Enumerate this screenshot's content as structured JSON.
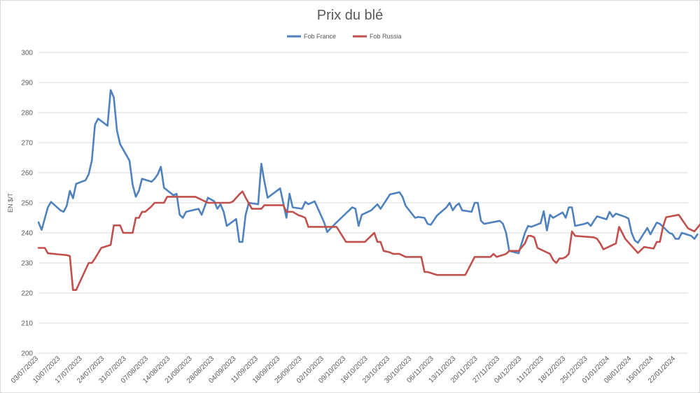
{
  "chart_data": {
    "type": "line",
    "title": "Prix du blé",
    "ylabel": "EN $/T",
    "xlabel": "",
    "ylim": [
      200,
      300
    ],
    "yticks": [
      200,
      210,
      220,
      230,
      240,
      250,
      260,
      270,
      280,
      290,
      300
    ],
    "y_gridlines": true,
    "legend_position": "top-center",
    "x_start": "2023-07-03",
    "x_end": "2024-01-26",
    "x_ticks": [
      "03/07/2023",
      "10/07/2023",
      "17/07/2023",
      "24/07/2023",
      "31/07/2023",
      "07/08/2023",
      "14/08/2023",
      "21/08/2023",
      "28/08/2023",
      "04/09/2023",
      "11/09/2023",
      "18/09/2023",
      "25/09/2023",
      "02/10/2023",
      "09/10/2023",
      "16/10/2023",
      "23/10/2023",
      "30/10/2023",
      "06/11/2023",
      "13/11/2023",
      "20/11/2023",
      "27/11/2023",
      "04/12/2023",
      "11/12/2023",
      "18/12/2023",
      "25/12/2023",
      "01/01/2024",
      "08/01/2024",
      "15/01/2024",
      "22/01/2024"
    ],
    "series": [
      {
        "name": "Fob France",
        "color": "#4f81bd",
        "points": [
          [
            "2023-07-03",
            243.5
          ],
          [
            "2023-07-04",
            241
          ],
          [
            "2023-07-06",
            248.5
          ],
          [
            "2023-07-07",
            250.3
          ],
          [
            "2023-07-10",
            247.5
          ],
          [
            "2023-07-11",
            247
          ],
          [
            "2023-07-12",
            249
          ],
          [
            "2023-07-13",
            254
          ],
          [
            "2023-07-14",
            251.5
          ],
          [
            "2023-07-15",
            256.3
          ],
          [
            "2023-07-18",
            257.5
          ],
          [
            "2023-07-19",
            259.5
          ],
          [
            "2023-07-20",
            264
          ],
          [
            "2023-07-21",
            276
          ],
          [
            "2023-07-22",
            278
          ],
          [
            "2023-07-25",
            275.6
          ],
          [
            "2023-07-26",
            287.5
          ],
          [
            "2023-07-27",
            285
          ],
          [
            "2023-07-28",
            274
          ],
          [
            "2023-07-29",
            269.5
          ],
          [
            "2023-08-01",
            264
          ],
          [
            "2023-08-02",
            256
          ],
          [
            "2023-08-03",
            252
          ],
          [
            "2023-08-04",
            254
          ],
          [
            "2023-08-05",
            258
          ],
          [
            "2023-08-08",
            257
          ],
          [
            "2023-08-09",
            258
          ],
          [
            "2023-08-10",
            259.5
          ],
          [
            "2023-08-11",
            262
          ],
          [
            "2023-08-12",
            255
          ],
          [
            "2023-08-15",
            252.5
          ],
          [
            "2023-08-16",
            253
          ],
          [
            "2023-08-17",
            246
          ],
          [
            "2023-08-18",
            245
          ],
          [
            "2023-08-19",
            247
          ],
          [
            "2023-08-23",
            248
          ],
          [
            "2023-08-24",
            246
          ],
          [
            "2023-08-26",
            251.7
          ],
          [
            "2023-08-28",
            250.5
          ],
          [
            "2023-08-29",
            248
          ],
          [
            "2023-08-30",
            249.5
          ],
          [
            "2023-08-31",
            247
          ],
          [
            "2023-09-01",
            242.3
          ],
          [
            "2023-09-04",
            244.6
          ],
          [
            "2023-09-05",
            237
          ],
          [
            "2023-09-06",
            237
          ],
          [
            "2023-09-07",
            246
          ],
          [
            "2023-09-08",
            250
          ],
          [
            "2023-09-11",
            249.5
          ],
          [
            "2023-09-12",
            263
          ],
          [
            "2023-09-13",
            257
          ],
          [
            "2023-09-14",
            251.7
          ],
          [
            "2023-09-18",
            254.8
          ],
          [
            "2023-09-20",
            245
          ],
          [
            "2023-09-21",
            253
          ],
          [
            "2023-09-22",
            248.5
          ],
          [
            "2023-09-25",
            248
          ],
          [
            "2023-09-26",
            250.3
          ],
          [
            "2023-09-27",
            249.5
          ],
          [
            "2023-09-29",
            250.5
          ],
          [
            "2023-10-02",
            243.5
          ],
          [
            "2023-10-03",
            240.3
          ],
          [
            "2023-10-06",
            243.5
          ],
          [
            "2023-10-09",
            246.5
          ],
          [
            "2023-10-11",
            248.5
          ],
          [
            "2023-10-12",
            248
          ],
          [
            "2023-10-13",
            242.3
          ],
          [
            "2023-10-14",
            246
          ],
          [
            "2023-10-17",
            247.5
          ],
          [
            "2023-10-19",
            249.5
          ],
          [
            "2023-10-20",
            248
          ],
          [
            "2023-10-23",
            252.8
          ],
          [
            "2023-10-26",
            253.5
          ],
          [
            "2023-10-27",
            252
          ],
          [
            "2023-10-28",
            249
          ],
          [
            "2023-10-31",
            245
          ],
          [
            "2023-11-01",
            245.3
          ],
          [
            "2023-11-03",
            245
          ],
          [
            "2023-11-04",
            243
          ],
          [
            "2023-11-05",
            242.7
          ],
          [
            "2023-11-07",
            245.8
          ],
          [
            "2023-11-10",
            248.5
          ],
          [
            "2023-11-11",
            250
          ],
          [
            "2023-11-12",
            247.5
          ],
          [
            "2023-11-13",
            249
          ],
          [
            "2023-11-14",
            249.8
          ],
          [
            "2023-11-15",
            247.5
          ],
          [
            "2023-11-18",
            247
          ],
          [
            "2023-11-19",
            250
          ],
          [
            "2023-11-20",
            250
          ],
          [
            "2023-11-21",
            244
          ],
          [
            "2023-11-22",
            243
          ],
          [
            "2023-11-27",
            244
          ],
          [
            "2023-11-28",
            243
          ],
          [
            "2023-11-29",
            240
          ],
          [
            "2023-11-30",
            234
          ],
          [
            "2023-12-03",
            233.2
          ],
          [
            "2023-12-05",
            240
          ],
          [
            "2023-12-06",
            242.3
          ],
          [
            "2023-12-07",
            242
          ],
          [
            "2023-12-10",
            243.2
          ],
          [
            "2023-12-11",
            247.2
          ],
          [
            "2023-12-12",
            240.8
          ],
          [
            "2023-12-13",
            246
          ],
          [
            "2023-12-14",
            245
          ],
          [
            "2023-12-17",
            246.8
          ],
          [
            "2023-12-18",
            245
          ],
          [
            "2023-12-19",
            248.5
          ],
          [
            "2023-12-20",
            248.5
          ],
          [
            "2023-12-21",
            242.3
          ],
          [
            "2023-12-24",
            243
          ],
          [
            "2023-12-25",
            243.4
          ],
          [
            "2023-12-26",
            242.3
          ],
          [
            "2023-12-27",
            244
          ],
          [
            "2023-12-28",
            245.5
          ],
          [
            "2023-12-31",
            244.5
          ],
          [
            "2024-01-01",
            247
          ],
          [
            "2024-01-02",
            245.3
          ],
          [
            "2024-01-03",
            246.4
          ],
          [
            "2024-01-06",
            245.3
          ],
          [
            "2024-01-07",
            244.8
          ],
          [
            "2024-01-08",
            240
          ],
          [
            "2024-01-09",
            237.5
          ],
          [
            "2024-01-10",
            236.7
          ],
          [
            "2024-01-13",
            241.6
          ],
          [
            "2024-01-14",
            239.5
          ],
          [
            "2024-01-15",
            241.5
          ],
          [
            "2024-01-16",
            243.4
          ],
          [
            "2024-01-17",
            243
          ],
          [
            "2024-01-20",
            240
          ],
          [
            "2024-01-21",
            239.6
          ],
          [
            "2024-01-22",
            238
          ],
          [
            "2024-01-23",
            238
          ],
          [
            "2024-01-24",
            240
          ],
          [
            "2024-01-27",
            239
          ],
          [
            "2024-01-28",
            238
          ],
          [
            "2024-01-29",
            239.5
          ]
        ]
      },
      {
        "name": "Fob Russia",
        "color": "#c0504d",
        "points": [
          [
            "2023-07-03",
            235
          ],
          [
            "2023-07-05",
            235
          ],
          [
            "2023-07-06",
            233.2
          ],
          [
            "2023-07-10",
            232.8
          ],
          [
            "2023-07-12",
            232.6
          ],
          [
            "2023-07-13",
            232.3
          ],
          [
            "2023-07-14",
            221
          ],
          [
            "2023-07-15",
            221
          ],
          [
            "2023-07-19",
            230
          ],
          [
            "2023-07-20",
            230
          ],
          [
            "2023-07-21",
            231.5
          ],
          [
            "2023-07-23",
            235
          ],
          [
            "2023-07-26",
            236
          ],
          [
            "2023-07-27",
            242.5
          ],
          [
            "2023-07-29",
            242.5
          ],
          [
            "2023-07-30",
            240
          ],
          [
            "2023-08-02",
            240
          ],
          [
            "2023-08-03",
            245
          ],
          [
            "2023-08-04",
            245
          ],
          [
            "2023-08-05",
            247
          ],
          [
            "2023-08-06",
            247
          ],
          [
            "2023-08-08",
            248.8
          ],
          [
            "2023-08-09",
            250
          ],
          [
            "2023-08-12",
            250
          ],
          [
            "2023-08-13",
            252
          ],
          [
            "2023-08-22",
            252
          ],
          [
            "2023-08-24",
            251
          ],
          [
            "2023-08-26",
            250
          ],
          [
            "2023-09-02",
            250
          ],
          [
            "2023-09-03",
            250.5
          ],
          [
            "2023-09-05",
            252.8
          ],
          [
            "2023-09-06",
            253.8
          ],
          [
            "2023-09-07",
            251.7
          ],
          [
            "2023-09-09",
            248
          ],
          [
            "2023-09-12",
            248
          ],
          [
            "2023-09-13",
            249.2
          ],
          [
            "2023-09-19",
            249.2
          ],
          [
            "2023-09-20",
            247
          ],
          [
            "2023-09-22",
            247
          ],
          [
            "2023-09-24",
            245.8
          ],
          [
            "2023-09-25",
            245.5
          ],
          [
            "2023-09-26",
            245
          ],
          [
            "2023-09-27",
            242
          ],
          [
            "2023-10-06",
            242
          ],
          [
            "2023-10-09",
            237
          ],
          [
            "2023-10-15",
            237
          ],
          [
            "2023-10-18",
            240
          ],
          [
            "2023-10-19",
            237
          ],
          [
            "2023-10-20",
            237
          ],
          [
            "2023-10-21",
            234
          ],
          [
            "2023-10-23",
            233.5
          ],
          [
            "2023-10-24",
            233
          ],
          [
            "2023-10-26",
            233
          ],
          [
            "2023-10-28",
            232
          ],
          [
            "2023-11-02",
            232
          ],
          [
            "2023-11-03",
            227
          ],
          [
            "2023-11-04",
            227
          ],
          [
            "2023-11-07",
            226
          ],
          [
            "2023-11-13",
            226
          ],
          [
            "2023-11-16",
            226
          ],
          [
            "2023-11-19",
            232
          ],
          [
            "2023-11-23",
            232
          ],
          [
            "2023-11-24",
            232
          ],
          [
            "2023-11-25",
            233
          ],
          [
            "2023-11-26",
            232
          ],
          [
            "2023-11-29",
            233
          ],
          [
            "2023-11-30",
            234
          ],
          [
            "2023-12-02",
            234
          ],
          [
            "2023-12-03",
            234
          ],
          [
            "2023-12-05",
            236.5
          ],
          [
            "2023-12-06",
            239
          ],
          [
            "2023-12-07",
            239
          ],
          [
            "2023-12-08",
            238.5
          ],
          [
            "2023-12-09",
            235
          ],
          [
            "2023-12-13",
            233
          ],
          [
            "2023-12-14",
            231
          ],
          [
            "2023-12-15",
            230
          ],
          [
            "2023-12-16",
            231.5
          ],
          [
            "2023-12-17",
            231.5
          ],
          [
            "2023-12-18",
            232
          ],
          [
            "2023-12-19",
            233
          ],
          [
            "2023-12-20",
            240.5
          ],
          [
            "2023-12-21",
            239
          ],
          [
            "2023-12-27",
            238.5
          ],
          [
            "2023-12-28",
            238
          ],
          [
            "2023-12-29",
            236.5
          ],
          [
            "2023-12-30",
            234.5
          ],
          [
            "2024-01-02",
            236
          ],
          [
            "2024-01-03",
            236.5
          ],
          [
            "2024-01-04",
            242
          ],
          [
            "2024-01-05",
            240
          ],
          [
            "2024-01-06",
            238
          ],
          [
            "2024-01-10",
            233.3
          ],
          [
            "2024-01-12",
            235.3
          ],
          [
            "2024-01-15",
            234.8
          ],
          [
            "2024-01-16",
            237
          ],
          [
            "2024-01-17",
            237
          ],
          [
            "2024-01-18",
            242
          ],
          [
            "2024-01-19",
            245.2
          ],
          [
            "2024-01-21",
            245.6
          ],
          [
            "2024-01-23",
            246
          ],
          [
            "2024-01-24",
            244.5
          ],
          [
            "2024-01-26",
            241.5
          ],
          [
            "2024-01-28",
            240.5
          ],
          [
            "2024-01-30",
            243
          ],
          [
            "2024-01-31",
            243.5
          ],
          [
            "2024-02-01",
            241
          ],
          [
            "2024-02-02",
            240.8
          ],
          [
            "2024-02-03",
            240.8
          ]
        ]
      }
    ]
  }
}
